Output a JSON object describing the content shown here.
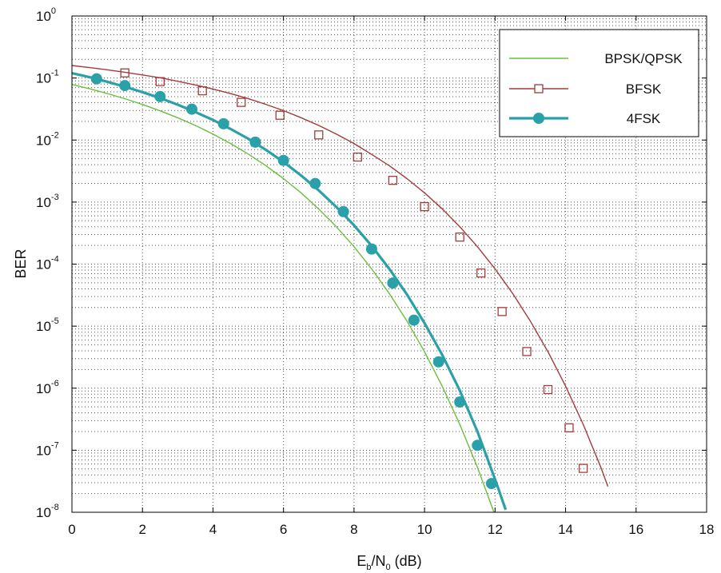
{
  "chart_data": {
    "type": "line",
    "xlabel": {
      "base": "E",
      "base_sub": "b",
      "slash": "/N",
      "slash_sub": "0",
      "unit": " (dB)"
    },
    "ylabel": "BER",
    "xlim": [
      0,
      18
    ],
    "ylim": [
      1e-08,
      1
    ],
    "yscale": "log",
    "grid": true,
    "legend_position": "top-right",
    "x_ticks": [
      "0",
      "2",
      "4",
      "6",
      "8",
      "10",
      "12",
      "14",
      "16",
      "18"
    ],
    "y_ticks": [
      {
        "base": "10",
        "exp": "0"
      },
      {
        "base": "10",
        "exp": "-1"
      },
      {
        "base": "10",
        "exp": "-2"
      },
      {
        "base": "10",
        "exp": "-3"
      },
      {
        "base": "10",
        "exp": "-4"
      },
      {
        "base": "10",
        "exp": "-5"
      },
      {
        "base": "10",
        "exp": "-6"
      },
      {
        "base": "10",
        "exp": "-7"
      },
      {
        "base": "10",
        "exp": "-8"
      }
    ],
    "series": [
      {
        "name": "BPSK/QPSK",
        "color": "#6abf3c",
        "marker": "none",
        "x": [
          0,
          0.5,
          1,
          1.5,
          2,
          2.5,
          3,
          3.5,
          4,
          4.5,
          5,
          5.5,
          6,
          6.5,
          7,
          7.5,
          8,
          8.5,
          9,
          9.5,
          10,
          10.5,
          11,
          11.5,
          12,
          12.2
        ],
        "y": [
          0.0786,
          0.0671,
          0.0563,
          0.0464,
          0.0375,
          0.0296,
          0.0229,
          0.0172,
          0.0125,
          0.00878,
          0.00595,
          0.00387,
          0.00239,
          0.00141,
          0.000773,
          0.000401,
          0.000191,
          8.4e-05,
          3.36e-05,
          1.21e-05,
          3.87e-06,
          1.08e-06,
          2.61e-07,
          5.3e-08,
          9e-09,
          4.3e-09
        ]
      },
      {
        "name": "BFSK",
        "color": "#a53a3a",
        "marker": "square",
        "x": [
          0,
          0.5,
          1,
          1.5,
          2,
          2.5,
          3,
          3.5,
          4,
          4.5,
          5,
          5.5,
          6,
          6.5,
          7,
          7.5,
          8,
          8.5,
          9,
          9.5,
          10,
          10.5,
          11,
          11.5,
          12,
          12.5,
          13,
          13.5,
          14,
          14.5,
          15,
          15.2
        ],
        "y": [
          0.159,
          0.147,
          0.136,
          0.124,
          0.112,
          0.101,
          0.0887,
          0.0774,
          0.0665,
          0.0562,
          0.0465,
          0.0376,
          0.0298,
          0.0229,
          0.0172,
          0.0125,
          0.00878,
          0.00587,
          0.00387,
          0.00239,
          0.00141,
          0.00078,
          0.000401,
          0.000191,
          8.4e-05,
          3.36e-05,
          1.21e-05,
          3.87e-06,
          1.08e-06,
          2.61e-07,
          5.3e-08,
          2.6e-08
        ],
        "marker_x": [
          1.5,
          2.5,
          3.7,
          4.8,
          5.9,
          7.0,
          8.1,
          9.1,
          10.0,
          11.0,
          11.6,
          12.2,
          12.9,
          13.5,
          14.1,
          14.5
        ],
        "marker_y": [
          0.121,
          0.0875,
          0.0623,
          0.0405,
          0.0251,
          0.0121,
          0.00532,
          0.00224,
          0.000844,
          0.000273,
          7.2e-05,
          1.72e-05,
          3.9e-06,
          9.5e-07,
          2.3e-07,
          5.1e-08
        ]
      },
      {
        "name": "4FSK",
        "color": "#2aa0a8",
        "marker": "circle",
        "x": [
          0,
          0.5,
          1,
          1.5,
          2,
          2.5,
          3,
          3.5,
          4,
          4.5,
          5,
          5.5,
          6,
          6.5,
          7,
          7.5,
          8,
          8.5,
          9,
          9.5,
          10,
          10.5,
          11,
          11.5,
          12,
          12.3
        ],
        "y": [
          0.12,
          0.103,
          0.087,
          0.0725,
          0.0592,
          0.0475,
          0.0372,
          0.0283,
          0.0211,
          0.0151,
          0.0105,
          0.00696,
          0.00443,
          0.00268,
          0.00154,
          0.000834,
          0.000423,
          0.000197,
          8.4e-05,
          3.24e-05,
          1.12e-05,
          3.45e-06,
          9.2e-07,
          2e-07,
          3.4e-08,
          1.1e-08
        ],
        "marker_x": [
          0.7,
          1.5,
          2.5,
          3.4,
          4.3,
          5.2,
          6.0,
          6.9,
          7.7,
          8.5,
          9.1,
          9.7,
          10.4,
          11.0,
          11.5,
          11.9
        ],
        "marker_y": [
          0.097,
          0.0755,
          0.0502,
          0.0315,
          0.0183,
          0.00926,
          0.0047,
          0.00199,
          0.000702,
          0.000175,
          4.95e-05,
          1.25e-05,
          2.66e-06,
          6e-07,
          1.2e-07,
          2.9e-08
        ]
      }
    ]
  }
}
